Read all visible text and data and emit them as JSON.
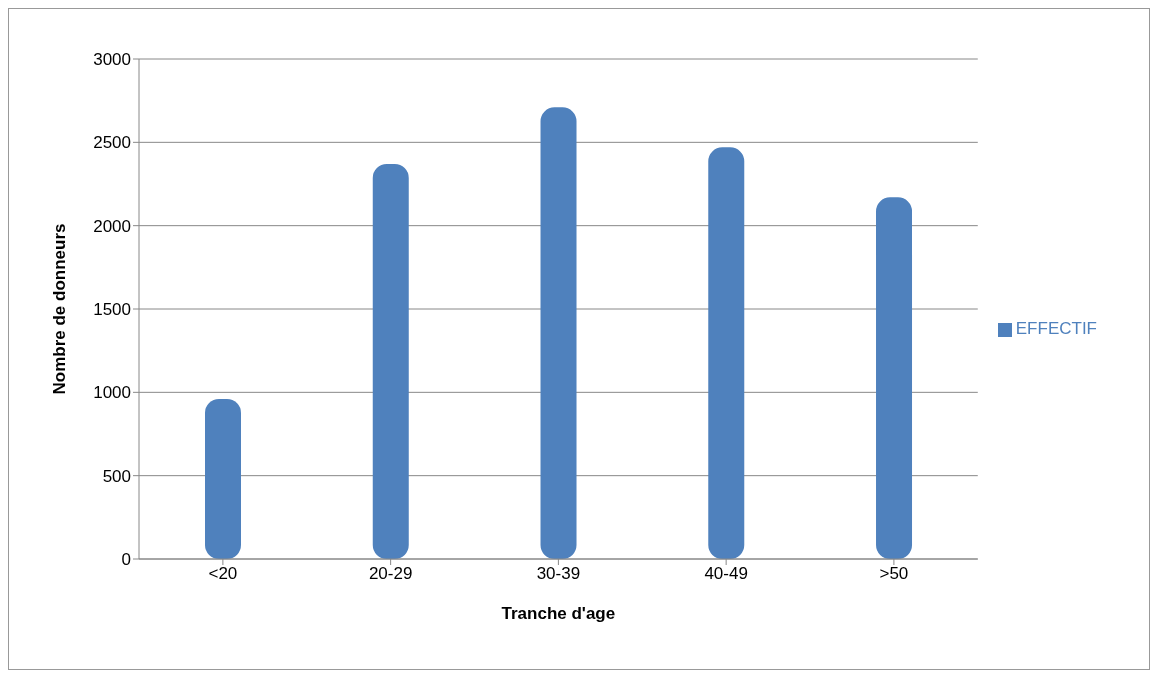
{
  "chart_data": {
    "type": "bar",
    "xlabel": "Tranche d'age",
    "ylabel": "Nombre de donneurs",
    "categories": [
      "<20",
      "20-29",
      "30-39",
      "40-49",
      ">50"
    ],
    "series": [
      {
        "name": "EFFECTIF",
        "color": "#4f81bd",
        "values": [
          960,
          2370,
          2710,
          2470,
          2170
        ]
      }
    ],
    "ylim": [
      0,
      3000
    ],
    "yticks": [
      0,
      500,
      1000,
      1500,
      2000,
      2500,
      3000
    ],
    "grid": "y",
    "legend": "right"
  }
}
